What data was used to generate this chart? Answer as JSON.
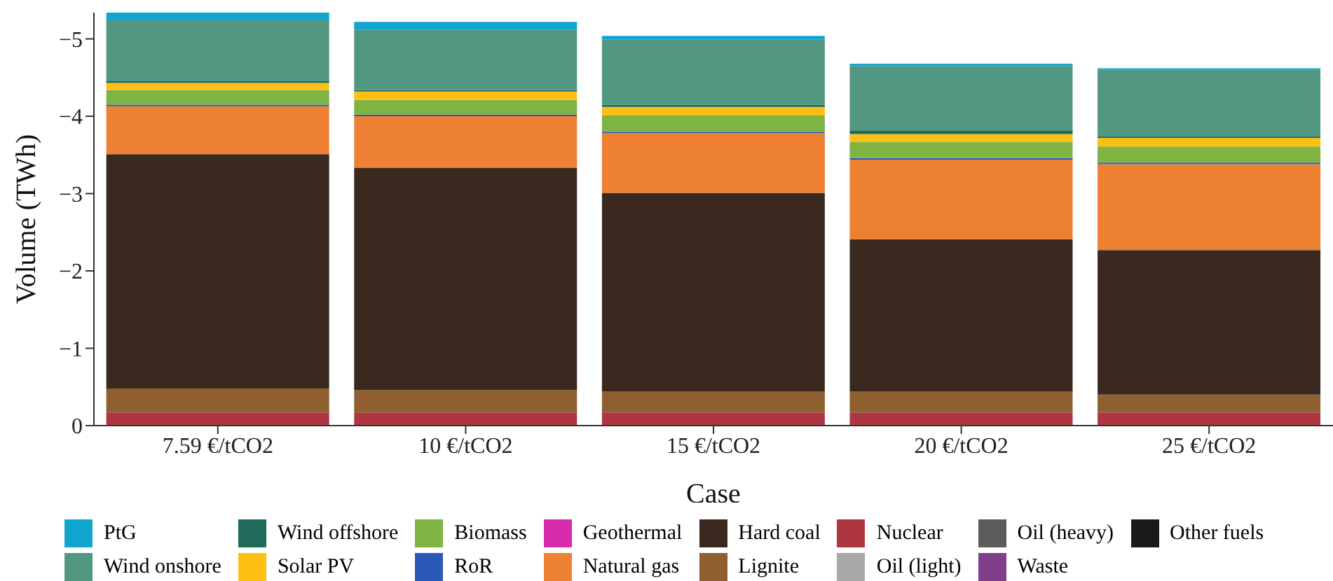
{
  "chart_data": {
    "type": "bar",
    "stacked": true,
    "xlabel": "Case",
    "ylabel": "Volume (TWh)",
    "categories": [
      "7.59 €/tCO2",
      "10 €/tCO2",
      "15 €/tCO2",
      "20 €/tCO2",
      "25 €/tCO2"
    ],
    "ylim": [
      0,
      -5.34
    ],
    "yticks": [
      0,
      -1,
      -2,
      -3,
      -4,
      -5
    ],
    "legend": "bottom",
    "series": [
      {
        "name": "Other fuels",
        "color": "#1a1a1a",
        "values": [
          0,
          0,
          0,
          0,
          0
        ]
      },
      {
        "name": "Waste",
        "color": "#7f3f8a",
        "values": [
          0,
          0,
          0,
          0,
          0
        ]
      },
      {
        "name": "Oil (heavy)",
        "color": "#5c5c5c",
        "values": [
          0,
          0,
          0,
          0,
          0
        ]
      },
      {
        "name": "Oil (light)",
        "color": "#a8a8a8",
        "values": [
          0,
          0,
          0,
          0,
          0
        ]
      },
      {
        "name": "Nuclear",
        "color": "#ae3640",
        "values": [
          -0.17,
          -0.17,
          -0.17,
          -0.17,
          -0.17
        ]
      },
      {
        "name": "Lignite",
        "color": "#8f5f30",
        "values": [
          -0.31,
          -0.29,
          -0.27,
          -0.27,
          -0.23
        ]
      },
      {
        "name": "Hard coal",
        "color": "#3b2920",
        "values": [
          -3.03,
          -2.87,
          -2.57,
          -1.97,
          -1.87
        ]
      },
      {
        "name": "Natural gas",
        "color": "#ed8032",
        "values": [
          -0.62,
          -0.67,
          -0.77,
          -1.03,
          -1.11
        ]
      },
      {
        "name": "Geothermal",
        "color": "#d82aad",
        "values": [
          0,
          0,
          0,
          0,
          0
        ]
      },
      {
        "name": "RoR",
        "color": "#2c59b8",
        "values": [
          -0.02,
          -0.02,
          -0.02,
          -0.02,
          -0.02
        ]
      },
      {
        "name": "Biomass",
        "color": "#7fb342",
        "values": [
          -0.19,
          -0.19,
          -0.21,
          -0.21,
          -0.21
        ]
      },
      {
        "name": "Solar PV",
        "color": "#fdbf12",
        "values": [
          -0.09,
          -0.11,
          -0.11,
          -0.1,
          -0.11
        ]
      },
      {
        "name": "Wind offshore",
        "color": "#1f6a59",
        "values": [
          -0.03,
          -0.02,
          -0.03,
          -0.04,
          -0.02
        ]
      },
      {
        "name": "Wind onshore",
        "color": "#529782",
        "values": [
          -0.78,
          -0.78,
          -0.84,
          -0.84,
          -0.86
        ]
      },
      {
        "name": "PtG",
        "color": "#11a6cf",
        "values": [
          -0.1,
          -0.1,
          -0.05,
          -0.03,
          -0.02
        ]
      }
    ]
  }
}
